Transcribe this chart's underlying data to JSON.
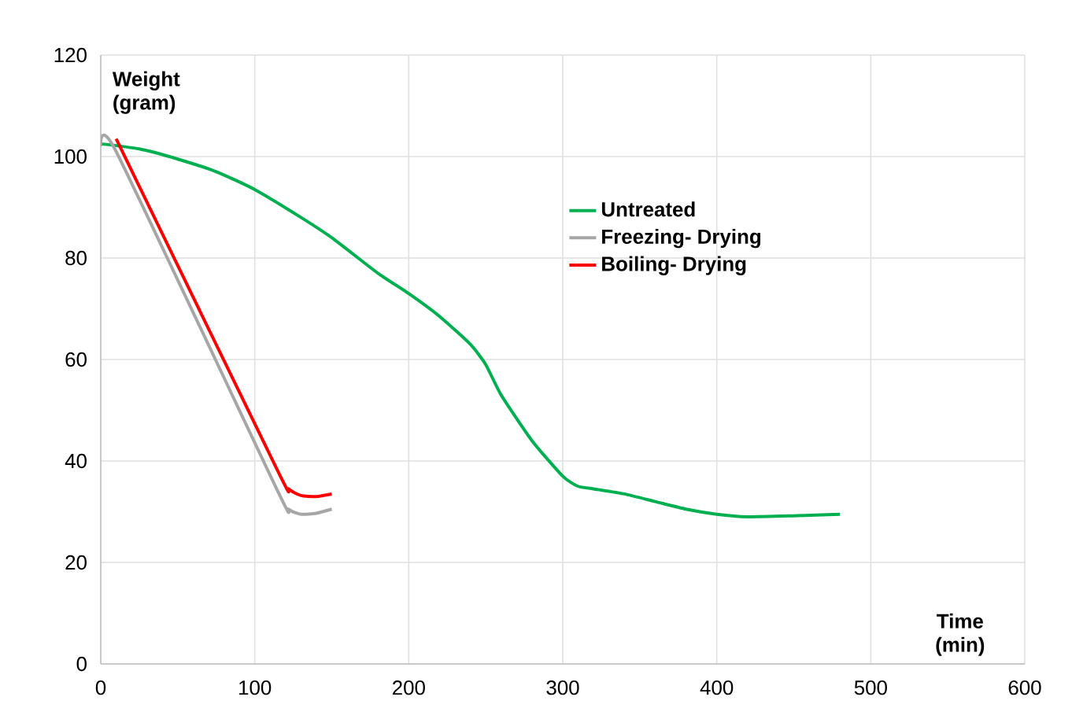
{
  "chart_data": {
    "type": "line",
    "xlabel": "Time (min)",
    "ylabel": "Weight (gram)",
    "xlim": [
      0,
      600
    ],
    "xticks": [
      0,
      100,
      200,
      300,
      400,
      500,
      600
    ],
    "ylim": [
      0,
      120
    ],
    "yticks": [
      0,
      20,
      40,
      60,
      80,
      100,
      120
    ],
    "grid": true,
    "legend": "right",
    "marker": "none",
    "line_style": "solid",
    "series": [
      {
        "name": "Untreated",
        "color": "#00b050",
        "x": [
          0,
          25,
          50,
          75,
          100,
          130,
          150,
          180,
          200,
          220,
          240,
          250,
          260,
          280,
          300,
          310,
          320,
          340,
          360,
          380,
          400,
          420,
          450,
          480
        ],
        "values": [
          102.5,
          101.5,
          99.5,
          97,
          93.5,
          88,
          84,
          77,
          73,
          68.5,
          63,
          59,
          53,
          44,
          37,
          35,
          34.5,
          33.5,
          32,
          30.5,
          29.5,
          29,
          29.2,
          29.5
        ]
      },
      {
        "name": "Freezing- Drying",
        "color": "#a6a6a6",
        "x": [
          0,
          10,
          115,
          122,
          130,
          140,
          150
        ],
        "values": [
          102,
          101,
          34,
          30.5,
          29.5,
          29.7,
          30.5
        ]
      },
      {
        "name": "Boiling- Drying",
        "color": "#ff0000",
        "x": [
          10,
          115,
          122,
          130,
          140,
          150
        ],
        "values": [
          103.5,
          38,
          34.5,
          33.2,
          33,
          33.5
        ]
      }
    ]
  }
}
